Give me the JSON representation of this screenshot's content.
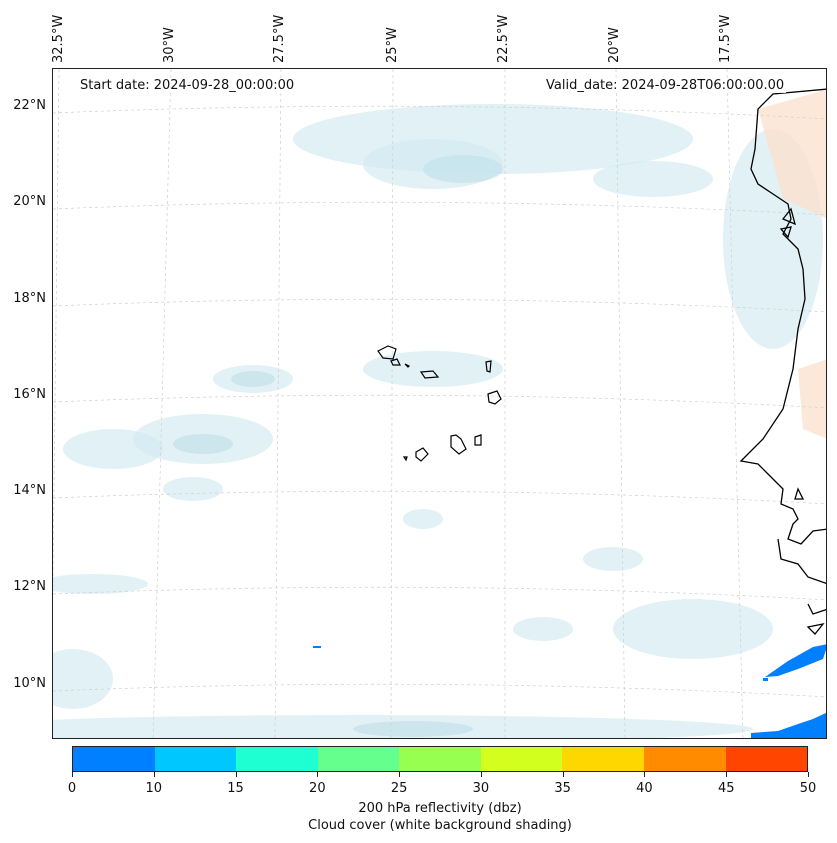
{
  "map": {
    "lon_labels": [
      "32.5°W",
      "30°W",
      "27.5°W",
      "25°W",
      "22.5°W",
      "20°W",
      "17.5°W"
    ],
    "lat_labels": [
      "22°N",
      "20°N",
      "18°N",
      "16°N",
      "14°N",
      "12°N",
      "10°N"
    ],
    "start_date": "Start date: 2024-09-28_00:00:00",
    "valid_date": "Valid_date: 2024-09-28T06:00:00.00"
  },
  "colorbar": {
    "tick_labels": [
      "0",
      "10",
      "15",
      "20",
      "25",
      "30",
      "35",
      "40",
      "45",
      "50"
    ],
    "colors": [
      "#0080ff",
      "#00c8ff",
      "#1effd2",
      "#64ff8c",
      "#96ff50",
      "#d2ff1e",
      "#ffd700",
      "#ff8c00",
      "#ff4500"
    ],
    "title_line1": "200 hPa reflectivity (dbz)",
    "title_line2": "Cloud cover (white background shading)"
  }
}
